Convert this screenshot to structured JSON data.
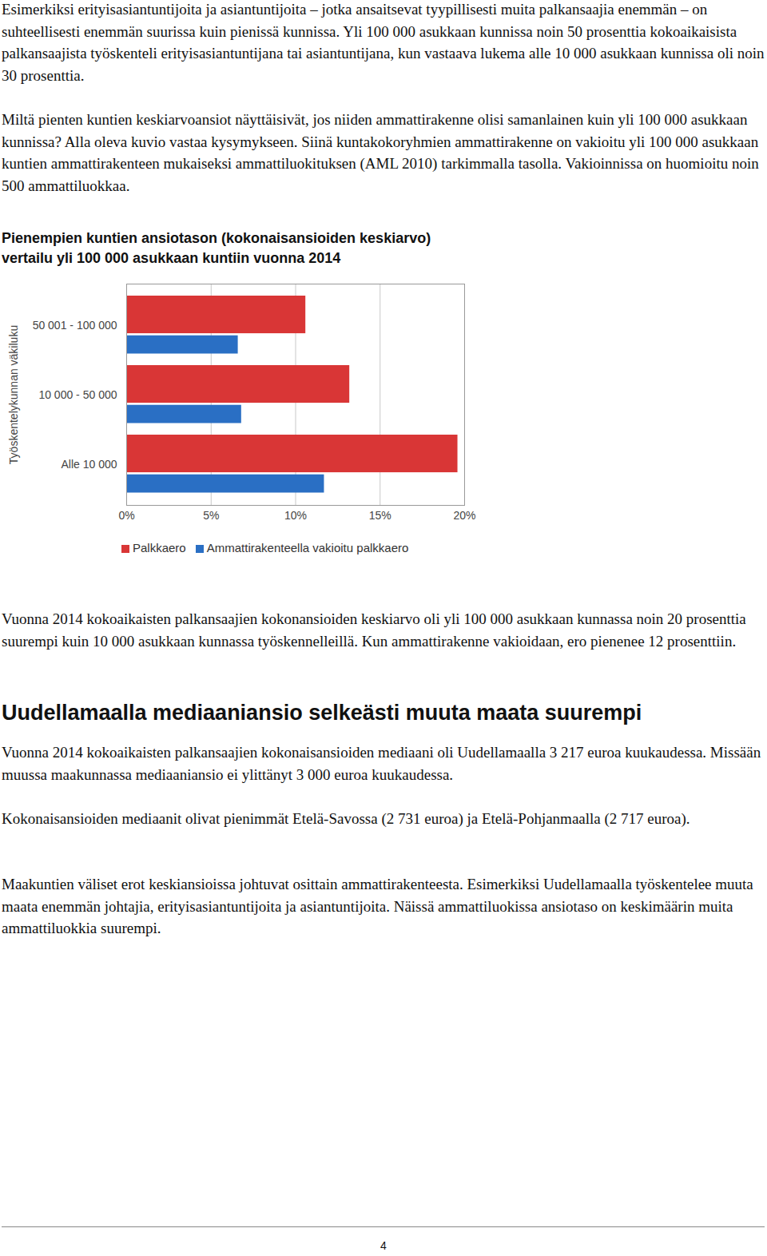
{
  "intro_paragraphs": [
    "Esimerkiksi erityisasiantuntijoita ja asiantuntijoita – jotka ansaitsevat tyypillisesti muita palkansaajia enemmän – on suhteellisesti enemmän suurissa kuin pienissä kunnissa. Yli 100 000 asukkaan kunnissa noin 50 prosenttia kokoaikaisista palkansaajista työskenteli erityisasiantuntijana tai asiantuntijana, kun vastaava lukema alle 10 000 asukkaan kunnissa oli noin 30 prosenttia.",
    "Miltä pienten kuntien keskiarvoansiot näyttäisivät, jos niiden ammattirakenne olisi samanlainen kuin yli 100 000 asukkaan kunnissa? Alla oleva kuvio vastaa kysymykseen. Siinä kuntakokoryhmien ammattirakenne on vakioitu yli 100 000 asukkaan kuntien ammattirakenteen mukaiseksi ammattiluokituksen (AML 2010) tarkimmalla tasolla. Vakioinnissa on huomioitu noin 500 ammattiluokkaa."
  ],
  "chart_data": {
    "type": "bar",
    "orientation": "horizontal",
    "title": "Pienempien kuntien ansiotason (kokonaisansioiden keskiarvo)\nvertailu yli 100 000 asukkaan kuntiin vuonna 2014",
    "y_label": "Työskentelykunnan väkiluku",
    "categories": [
      "50 001 - 100 000",
      "10 000 - 50 000",
      "Alle 10 000"
    ],
    "series": [
      {
        "name": "Palkkaero",
        "color": "#d93636",
        "values": [
          10.6,
          13.2,
          19.6
        ]
      },
      {
        "name": "Ammattirakenteella vakioitu palkkaero",
        "color": "#2a6fc4",
        "values": [
          6.6,
          6.8,
          11.7
        ]
      }
    ],
    "xlim": [
      0,
      20
    ],
    "xticks": [
      {
        "value": 0,
        "label": "0%"
      },
      {
        "value": 5,
        "label": "5%"
      },
      {
        "value": 10,
        "label": "10%"
      },
      {
        "value": 15,
        "label": "15%"
      },
      {
        "value": 20,
        "label": "20%"
      }
    ],
    "grid": true,
    "legend": "bottom"
  },
  "after_chart_paragraphs": [
    "Vuonna 2014 kokoaikaisten palkansaajien kokonansioiden keskiarvo oli yli 100 000 asukkaan kunnassa noin 20 prosenttia suurempi kuin 10 000 asukkaan kunnassa työskennelleillä. Kun ammattirakenne vakioidaan, ero pienenee 12 prosenttiin."
  ],
  "section": {
    "heading": "Uudellamaalla mediaaniansio selkeästi muuta maata suurempi",
    "paragraphs": [
      "Vuonna 2014 kokoaikaisten palkansaajien kokonaisansioiden mediaani oli Uudellamaalla 3 217 euroa kuukaudessa. Missään muussa maakunnassa mediaaniansio ei ylittänyt 3 000 euroa kuukaudessa.",
      "Kokonaisansioiden mediaanit olivat pienimmät Etelä-Savossa (2 731 euroa) ja Etelä-Pohjanmaalla (2 717 euroa).",
      "Maakuntien väliset erot keskiansioissa johtuvat osittain ammattirakenteesta. Esimerkiksi Uudellamaalla työskentelee muuta maata enemmän johtajia, erityisasiantuntijoita ja asiantuntijoita. Näissä ammattiluokissa ansiotaso on keskimäärin muita ammattiluokkia suurempi."
    ]
  },
  "page_number": 4
}
